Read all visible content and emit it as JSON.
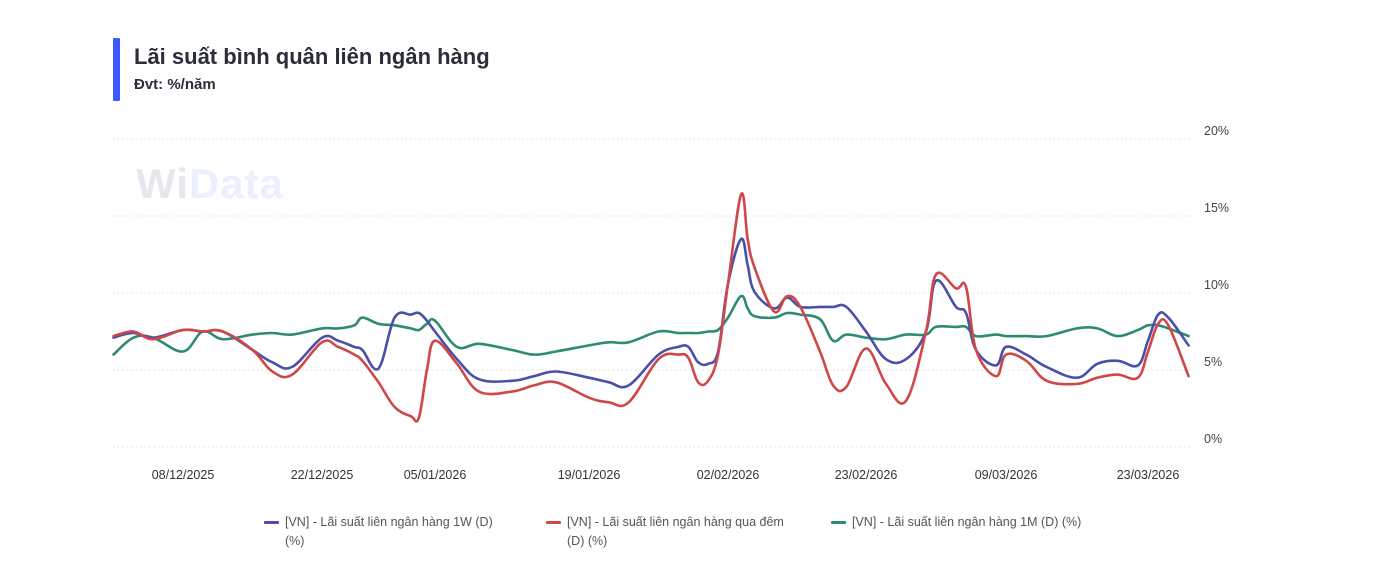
{
  "header": {
    "title": "Lãi suất bình quân liên ngân hàng",
    "subtitle": "Đvt: %/năm",
    "accent_color": "#3d5afe"
  },
  "watermark": {
    "part1": "Wi",
    "part2": "Data"
  },
  "chart_data": {
    "type": "line",
    "title": "Lãi suất bình quân liên ngân hàng",
    "subtitle": "Đvt: %/năm",
    "xlabel": "",
    "ylabel": "",
    "y_axis_position": "right",
    "ylim": [
      0,
      20
    ],
    "y_ticks": [
      0,
      5,
      10,
      15,
      20
    ],
    "y_tick_labels": [
      "0%",
      "5%",
      "10%",
      "15%",
      "20%"
    ],
    "x_ticks": [
      "2025-12-08",
      "2025-12-22",
      "2026-01-05",
      "2026-01-19",
      "2026-02-02",
      "2026-02-23",
      "2026-03-09",
      "2026-03-23"
    ],
    "x_tick_labels": [
      "08/12/2025",
      "22/12/2025",
      "05/01/2026",
      "19/01/2026",
      "02/02/2026",
      "23/02/2026",
      "09/03/2026",
      "23/03/2026"
    ],
    "grid": true,
    "legend_position": "bottom",
    "x": [
      "2025-12-01",
      "2025-12-03",
      "2025-12-05",
      "2025-12-08",
      "2025-12-10",
      "2025-12-12",
      "2025-12-15",
      "2025-12-17",
      "2025-12-19",
      "2025-12-22",
      "2025-12-24",
      "2025-12-26",
      "2025-12-27",
      "2025-12-29",
      "2025-12-31",
      "2026-01-02",
      "2026-01-03",
      "2026-01-04",
      "2026-01-05",
      "2026-01-07",
      "2026-01-09",
      "2026-01-12",
      "2026-01-14",
      "2026-01-16",
      "2026-01-19",
      "2026-01-21",
      "2026-01-23",
      "2026-01-26",
      "2026-01-28",
      "2026-01-29",
      "2026-01-30",
      "2026-01-31",
      "2026-02-01",
      "2026-02-02",
      "2026-02-04",
      "2026-02-05",
      "2026-02-06",
      "2026-02-09",
      "2026-02-11",
      "2026-02-13",
      "2026-02-16",
      "2026-02-18",
      "2026-02-20",
      "2026-02-23",
      "2026-02-25",
      "2026-02-27",
      "2026-03-01",
      "2026-03-02",
      "2026-03-04",
      "2026-03-05",
      "2026-03-06",
      "2026-03-08",
      "2026-03-09",
      "2026-03-11",
      "2026-03-13",
      "2026-03-16",
      "2026-03-18",
      "2026-03-20",
      "2026-03-22",
      "2026-03-23",
      "2026-03-24",
      "2026-03-25",
      "2026-03-27"
    ],
    "series": [
      {
        "name": "[VN] - Lãi suất liên ngân hàng 1W (D) (%)",
        "color": "#4a4fa8",
        "values": [
          7.1,
          7.4,
          7.1,
          7.6,
          7.5,
          7.5,
          6.3,
          5.5,
          5.2,
          7.1,
          6.9,
          6.5,
          6.3,
          5.1,
          8.4,
          8.6,
          8.7,
          8.2,
          7.5,
          5.7,
          4.4,
          4.3,
          4.6,
          4.9,
          4.5,
          4.2,
          4.0,
          6.0,
          6.5,
          6.5,
          5.5,
          5.4,
          6.2,
          10.6,
          13.5,
          11.8,
          10.1,
          9.0,
          9.7,
          9.1,
          9.1,
          9.1,
          9.1,
          7.5,
          5.7,
          5.7,
          7.5,
          10.8,
          9.1,
          8.7,
          6.3,
          5.3,
          6.5,
          6.0,
          5.2,
          4.5,
          5.4,
          5.6,
          5.3,
          6.9,
          8.6,
          8.4,
          6.6
        ]
      },
      {
        "name": "[VN] - Lãi suất liên ngân hàng qua đêm (D) (%)",
        "color": "#d0474a",
        "values": [
          7.2,
          7.5,
          7.0,
          7.6,
          7.5,
          7.5,
          6.3,
          4.9,
          4.7,
          6.8,
          6.5,
          6.0,
          5.6,
          4.2,
          2.6,
          2.0,
          1.9,
          5.0,
          6.9,
          5.4,
          3.6,
          3.6,
          4.0,
          4.2,
          3.2,
          2.9,
          2.9,
          5.7,
          6.0,
          5.8,
          4.2,
          4.3,
          6.0,
          10.6,
          16.4,
          13.5,
          11.7,
          8.8,
          9.8,
          9.1,
          6.2,
          4.0,
          3.9,
          6.4,
          4.1,
          3.0,
          7.5,
          11.2,
          10.3,
          10.4,
          6.3,
          4.6,
          6.0,
          5.6,
          4.3,
          4.1,
          4.5,
          4.7,
          4.5,
          6.2,
          8.0,
          7.9,
          4.6
        ]
      },
      {
        "name": "[VN] - Lãi suất liên ngân hàng 1M (D) (%)",
        "color": "#2e8b72",
        "values": [
          6.0,
          7.1,
          7.1,
          6.2,
          7.5,
          7.0,
          7.3,
          7.4,
          7.3,
          7.7,
          7.7,
          7.9,
          8.4,
          8.0,
          7.9,
          7.7,
          7.6,
          8.0,
          8.2,
          6.5,
          6.7,
          6.3,
          6.0,
          6.2,
          6.6,
          6.8,
          6.8,
          7.5,
          7.4,
          7.4,
          7.4,
          7.5,
          7.6,
          8.4,
          9.8,
          9.0,
          8.5,
          8.4,
          8.7,
          8.6,
          8.3,
          6.9,
          7.3,
          7.1,
          7.0,
          7.3,
          7.3,
          7.8,
          7.8,
          7.8,
          7.2,
          7.3,
          7.2,
          7.2,
          7.2,
          7.7,
          7.7,
          7.2,
          7.6,
          7.9,
          7.9,
          7.7,
          7.2
        ]
      }
    ]
  },
  "legend": {
    "items": [
      {
        "label": "[VN] - Lãi suất liên ngân hàng 1W (D) (%)",
        "color": "#4a4fa8"
      },
      {
        "label": "[VN] - Lãi suất liên ngân hàng qua đêm (D) (%)",
        "color": "#d0474a"
      },
      {
        "label": "[VN] - Lãi suất liên ngân hàng 1M (D) (%)",
        "color": "#2e8b72"
      }
    ]
  }
}
